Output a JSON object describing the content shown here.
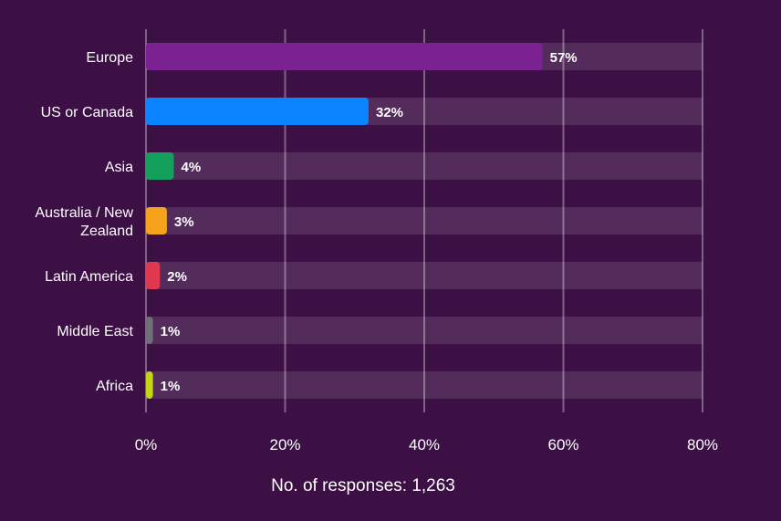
{
  "chart_data": {
    "type": "bar",
    "orientation": "horizontal",
    "categories": [
      "Europe",
      "US or Canada",
      "Asia",
      "Australia / New Zealand",
      "Latin America",
      "Middle East",
      "Africa"
    ],
    "values": [
      57,
      32,
      4,
      3,
      2,
      1,
      1
    ],
    "value_labels": [
      "57%",
      "32%",
      "4%",
      "3%",
      "2%",
      "1%",
      "1%"
    ],
    "colors": [
      "#7b2192",
      "#0a84ff",
      "#12a05c",
      "#f5a31a",
      "#e0394f",
      "#6e7078",
      "#c4d613"
    ],
    "xlim": [
      0,
      80
    ],
    "xticks": [
      0,
      20,
      40,
      60,
      80
    ],
    "xtick_labels": [
      "0%",
      "20%",
      "40%",
      "60%",
      "80%"
    ],
    "grid": true,
    "background_track": true,
    "footnote": "No. of responses: 1,263"
  }
}
